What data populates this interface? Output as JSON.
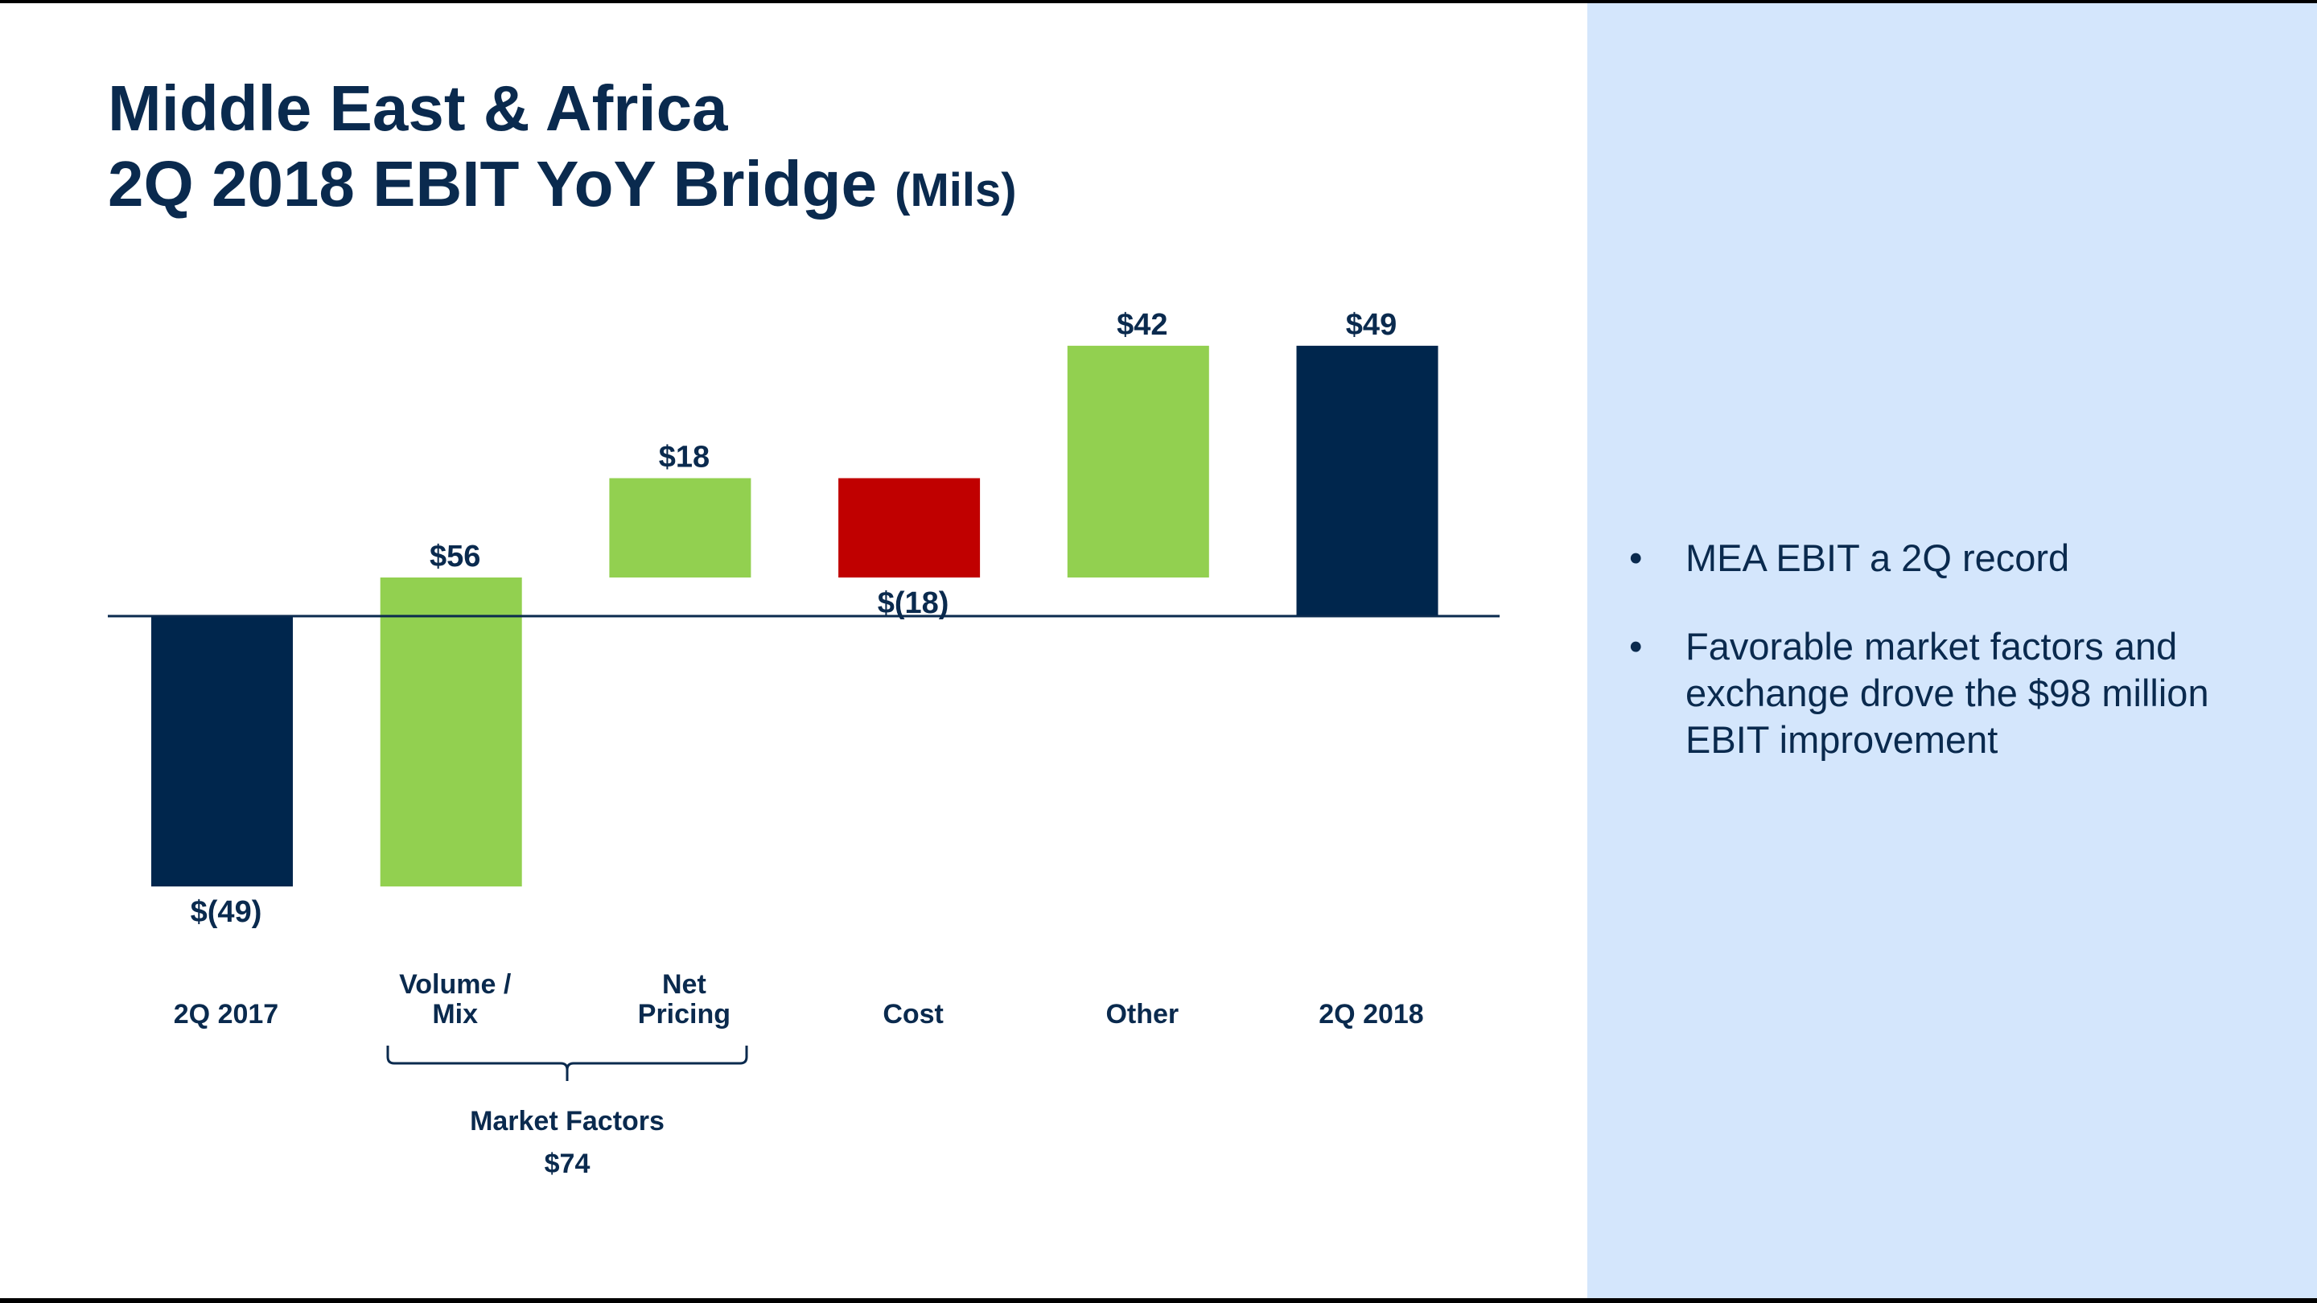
{
  "title": {
    "line1": "Middle East & Africa",
    "line2": "2Q 2018 EBIT YoY Bridge",
    "unit": "(Mils)"
  },
  "bullets": [
    {
      "marker": "•",
      "text": "MEA EBIT a 2Q record"
    },
    {
      "marker": "•",
      "text": "Favorable market factors and exchange drove the $98 million EBIT improvement"
    }
  ],
  "colors": {
    "total": "#00264d",
    "increase": "#92d050",
    "decrease": "#c00000",
    "panel": "#d4e6fc",
    "text": "#0a2a4e"
  },
  "chart_data": {
    "type": "waterfall",
    "categories": [
      [
        "2Q 2017"
      ],
      [
        "Volume /",
        "Mix"
      ],
      [
        "Net",
        "Pricing"
      ],
      [
        "Cost"
      ],
      [
        "Other"
      ],
      [
        "2Q 2018"
      ]
    ],
    "values": [
      -49,
      56,
      18,
      -18,
      42,
      49
    ],
    "kinds": [
      "total",
      "increase",
      "increase",
      "decrease",
      "increase",
      "total"
    ],
    "data_labels": [
      "$(49)",
      "$56",
      "$18",
      "$(18)",
      "$42",
      "$49"
    ],
    "group_annotation": {
      "categories": [
        "Volume / Mix",
        "Net Pricing"
      ],
      "label": "Market Factors",
      "value": "$74"
    },
    "grid": false,
    "legend": "none"
  }
}
